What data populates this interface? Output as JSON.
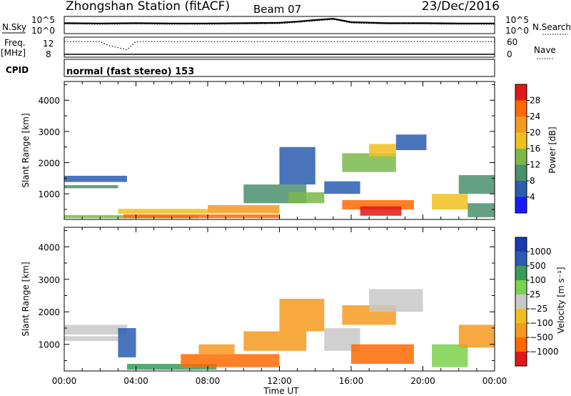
{
  "header": {
    "station": "Zhongshan Station (fitACF)",
    "beam": "Beam 07",
    "date": "23/Dec/2016"
  },
  "status_panels": {
    "nsky_label": "N.Sky",
    "nsky_ticks": [
      "10^5",
      "10^0"
    ],
    "nsearch_label": "N.Search",
    "nsearch_ticks": [
      "10^5",
      "10^0"
    ],
    "freq_label_1": "Freq.",
    "freq_label_2": "[MHz]",
    "freq_ticks": [
      "12",
      "8"
    ],
    "nave_label": "Nave",
    "nave_ticks": [
      "60",
      "0"
    ],
    "cpid_label": "CPID",
    "cpid_text": "normal (fast stereo) 153"
  },
  "colors": {
    "power": [
      "#1a1aff",
      "#2a5db0",
      "#4a8f6e",
      "#7ab84a",
      "#f0c020",
      "#f59a20",
      "#ff6a00",
      "#e01818"
    ],
    "velocity": [
      "#e01818",
      "#ff6a00",
      "#f59a20",
      "#f0c020",
      "#c8c8c8",
      "#7ad24a",
      "#3a9a5a",
      "#2a5db0",
      "#1a3ab0"
    ]
  },
  "chart_data": [
    {
      "type": "heatmap",
      "name": "power",
      "ylabel": "Slant Range [km]",
      "xlabel": "",
      "x_ticks": [
        "00:00",
        "04:00",
        "08:00",
        "12:00",
        "16:00",
        "20:00",
        "00:00"
      ],
      "xlim_hours": [
        0,
        24
      ],
      "y_ticks": [
        1000,
        2000,
        3000,
        4000
      ],
      "ylim": [
        180,
        4600
      ],
      "colorbar_label": "Power [dB]",
      "colorbar_ticks": [
        4,
        8,
        12,
        16,
        20,
        24,
        28
      ],
      "colorbar_range": [
        0,
        32
      ],
      "regions": [
        {
          "x": [
            0.0,
            3.5
          ],
          "y": [
            1380,
            1580
          ],
          "v": 7
        },
        {
          "x": [
            0.0,
            3.0
          ],
          "y": [
            1180,
            1280
          ],
          "v": 9
        },
        {
          "x": [
            0.0,
            7.5
          ],
          "y": [
            220,
            320
          ],
          "v": 12
        },
        {
          "x": [
            3.3,
            12.0
          ],
          "y": [
            220,
            340
          ],
          "v": 27
        },
        {
          "x": [
            3.0,
            8.0
          ],
          "y": [
            360,
            520
          ],
          "v": 19
        },
        {
          "x": [
            8.0,
            12.0
          ],
          "y": [
            380,
            640
          ],
          "v": 21
        },
        {
          "x": [
            10.0,
            13.5
          ],
          "y": [
            700,
            1300
          ],
          "v": 9
        },
        {
          "x": [
            12.0,
            14.0
          ],
          "y": [
            1300,
            2500
          ],
          "v": 6
        },
        {
          "x": [
            12.5,
            14.5
          ],
          "y": [
            700,
            1050
          ],
          "v": 13
        },
        {
          "x": [
            14.5,
            16.5
          ],
          "y": [
            1000,
            1400
          ],
          "v": 7
        },
        {
          "x": [
            15.5,
            19.5
          ],
          "y": [
            500,
            800
          ],
          "v": 24
        },
        {
          "x": [
            16.5,
            18.8
          ],
          "y": [
            300,
            600
          ],
          "v": 29
        },
        {
          "x": [
            15.5,
            18.5
          ],
          "y": [
            1700,
            2300
          ],
          "v": 14
        },
        {
          "x": [
            17.0,
            18.5
          ],
          "y": [
            2200,
            2600
          ],
          "v": 17
        },
        {
          "x": [
            18.5,
            20.2
          ],
          "y": [
            2400,
            2900
          ],
          "v": 6
        },
        {
          "x": [
            20.5,
            22.5
          ],
          "y": [
            500,
            1000
          ],
          "v": 19
        },
        {
          "x": [
            22.0,
            24.0
          ],
          "y": [
            1000,
            1600
          ],
          "v": 10
        },
        {
          "x": [
            22.5,
            24.0
          ],
          "y": [
            250,
            700
          ],
          "v": 8
        }
      ]
    },
    {
      "type": "heatmap",
      "name": "velocity",
      "ylabel": "Slant Range [km]",
      "xlabel": "Time UT",
      "x_ticks": [
        "00:00",
        "04:00",
        "08:00",
        "12:00",
        "16:00",
        "20:00",
        "00:00"
      ],
      "xlim_hours": [
        0,
        24
      ],
      "y_ticks": [
        1000,
        2000,
        3000,
        4000
      ],
      "ylim": [
        180,
        4600
      ],
      "colorbar_label": "Velocity [m s⁻¹]",
      "colorbar_ticks": [
        "1000",
        "500",
        "100",
        "25",
        "−25",
        "−100",
        "−500",
        "−1000"
      ],
      "regions": [
        {
          "x": [
            0.0,
            3.5
          ],
          "y": [
            1300,
            1600
          ],
          "v": 4
        },
        {
          "x": [
            0.0,
            3.0
          ],
          "y": [
            1100,
            1250
          ],
          "v": 4
        },
        {
          "x": [
            3.0,
            4.0
          ],
          "y": [
            600,
            1500
          ],
          "v": 7
        },
        {
          "x": [
            3.5,
            8.5
          ],
          "y": [
            220,
            400
          ],
          "v": 6
        },
        {
          "x": [
            6.5,
            12.0
          ],
          "y": [
            300,
            700
          ],
          "v": 1
        },
        {
          "x": [
            7.5,
            9.5
          ],
          "y": [
            700,
            1000
          ],
          "v": 2
        },
        {
          "x": [
            10.0,
            13.5
          ],
          "y": [
            800,
            1400
          ],
          "v": 2
        },
        {
          "x": [
            12.0,
            14.5
          ],
          "y": [
            1400,
            2400
          ],
          "v": 2
        },
        {
          "x": [
            14.5,
            16.5
          ],
          "y": [
            800,
            1500
          ],
          "v": 4
        },
        {
          "x": [
            16.0,
            19.5
          ],
          "y": [
            400,
            1000
          ],
          "v": 1
        },
        {
          "x": [
            15.5,
            18.5
          ],
          "y": [
            1600,
            2200
          ],
          "v": 2
        },
        {
          "x": [
            17.0,
            20.0
          ],
          "y": [
            2000,
            2700
          ],
          "v": 4
        },
        {
          "x": [
            20.5,
            22.5
          ],
          "y": [
            300,
            1000
          ],
          "v": 5
        },
        {
          "x": [
            22.0,
            24.0
          ],
          "y": [
            900,
            1600
          ],
          "v": 2
        }
      ]
    },
    {
      "type": "line",
      "name": "nsky",
      "series": [
        {
          "values_hours": [
            0,
            2,
            4,
            6,
            8,
            10,
            12,
            13,
            14,
            15,
            16,
            18,
            20,
            22,
            24
          ],
          "values": [
            3.1,
            3.0,
            3.1,
            3.0,
            3.0,
            3.1,
            3.2,
            3.6,
            4.1,
            4.5,
            3.4,
            3.1,
            3.1,
            3.0,
            3.0
          ]
        }
      ],
      "ylim": [
        0,
        5
      ]
    },
    {
      "type": "line",
      "name": "freq",
      "series": [
        {
          "values_hours": [
            0,
            2,
            2.5,
            3.5,
            4,
            24
          ],
          "values": [
            11.8,
            11.8,
            10.5,
            9.2,
            11.8,
            11.8
          ]
        }
      ],
      "ylim": [
        7,
        13
      ]
    }
  ]
}
